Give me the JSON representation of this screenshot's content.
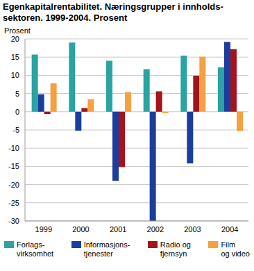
{
  "chart_data": {
    "type": "bar",
    "title": "Egenkapitalrentabilitet. Næringsgrupper i innholds-\nsektoren. 1999-2004. Prosent",
    "ylabel": "Prosent",
    "categories": [
      "1999",
      "2000",
      "2001",
      "2002",
      "2003",
      "2004"
    ],
    "series": [
      {
        "name": "Forlags-\nvirksomhet",
        "color": "#2aa3a3",
        "values": [
          15.7,
          19,
          14,
          11.7,
          15.4,
          12.2
        ]
      },
      {
        "name": "Informasjons-\ntjenester",
        "color": "#1c3d9c",
        "values": [
          4.8,
          -5.2,
          -19,
          -30,
          -14.2,
          19.2
        ]
      },
      {
        "name": "Radio og\nfjernsyn",
        "color": "#a3141c",
        "values": [
          -0.6,
          1,
          -15.2,
          5.6,
          9.9,
          17.2
        ]
      },
      {
        "name": "Film\nog video",
        "color": "#f4a043",
        "values": [
          7.8,
          3.4,
          5.4,
          -0.4,
          15.1,
          -5.3
        ]
      }
    ],
    "ylim": [
      -30,
      20
    ],
    "yticks": [
      -30,
      -25,
      -20,
      -15,
      -10,
      -5,
      0,
      5,
      10,
      15,
      20
    ],
    "grid": true,
    "legend": "bottom"
  }
}
